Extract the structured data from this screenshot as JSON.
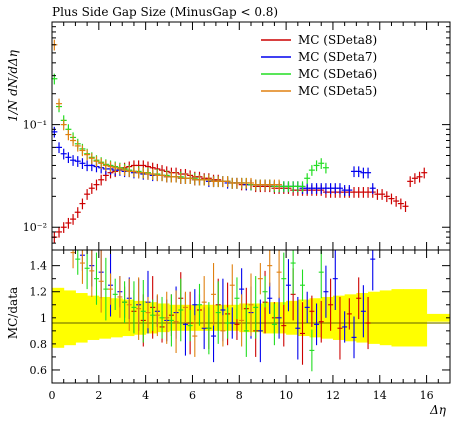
{
  "chart_data": [
    {
      "type": "scatter",
      "title": "Plus Side Gap Size (MinusGap < 0.8)",
      "ylabel": "1/N dN/dΔη",
      "yscale": "log",
      "ylim": [
        0.006,
        1.0
      ],
      "xlim": [
        0,
        17
      ],
      "y_ticks": [
        {
          "v": 0.01,
          "label": "10⁻²"
        },
        {
          "v": 0.1,
          "label": "10⁻¹"
        }
      ],
      "legend": {
        "placement": "top-right",
        "entries": [
          {
            "label": "MC (SDeta8)",
            "color": "#cc0000"
          },
          {
            "label": "MC (SDeta7)",
            "color": "#0000ee"
          },
          {
            "label": "MC (SDeta6)",
            "color": "#22dd22"
          },
          {
            "label": "MC (SDeta5)",
            "color": "#e08010"
          }
        ]
      },
      "series": [
        {
          "name": "MC (SDeta8)",
          "color": "#cc0000",
          "x": [
            0.1,
            0.3,
            0.5,
            0.7,
            0.9,
            1.1,
            1.3,
            1.5,
            1.7,
            1.9,
            2.1,
            2.3,
            2.5,
            2.7,
            2.9,
            3.1,
            3.3,
            3.5,
            3.7,
            3.9,
            4.1,
            4.3,
            4.5,
            4.7,
            4.9,
            5.1,
            5.3,
            5.5,
            5.7,
            5.9,
            6.1,
            6.3,
            6.5,
            6.7,
            6.9,
            7.1,
            7.3,
            7.5,
            7.7,
            7.9,
            8.1,
            8.3,
            8.5,
            8.7,
            8.9,
            9.1,
            9.3,
            9.5,
            9.7,
            9.9,
            10.1,
            10.3,
            10.5,
            10.7,
            10.9,
            11.1,
            11.3,
            11.5,
            11.7,
            11.9,
            12.1,
            12.3,
            12.5,
            12.7,
            12.9,
            13.1,
            13.3,
            13.5,
            13.7,
            13.9,
            14.1,
            14.3,
            14.5,
            14.7,
            14.9,
            15.1,
            15.3,
            15.5,
            15.7,
            15.9
          ],
          "y": [
            0.008,
            0.009,
            0.01,
            0.011,
            0.012,
            0.014,
            0.017,
            0.021,
            0.024,
            0.026,
            0.029,
            0.032,
            0.034,
            0.035,
            0.037,
            0.038,
            0.039,
            0.04,
            0.04,
            0.04,
            0.039,
            0.038,
            0.037,
            0.036,
            0.035,
            0.034,
            0.034,
            0.033,
            0.033,
            0.032,
            0.031,
            0.031,
            0.03,
            0.03,
            0.029,
            0.029,
            0.028,
            0.028,
            0.027,
            0.027,
            0.026,
            0.026,
            0.026,
            0.025,
            0.025,
            0.025,
            0.025,
            0.024,
            0.024,
            0.024,
            0.024,
            0.023,
            0.023,
            0.023,
            0.023,
            0.023,
            0.023,
            0.023,
            0.022,
            0.022,
            0.022,
            0.022,
            0.022,
            0.022,
            0.022,
            0.022,
            0.022,
            0.022,
            0.022,
            0.021,
            0.021,
            0.02,
            0.019,
            0.018,
            0.017,
            0.016,
            0.028,
            0.03,
            0.031,
            0.034
          ]
        },
        {
          "name": "MC (SDeta7)",
          "color": "#0000ee",
          "x": [
            0.1,
            0.3,
            0.5,
            0.7,
            0.9,
            1.1,
            1.3,
            1.5,
            1.7,
            1.9,
            2.1,
            2.3,
            2.5,
            2.7,
            2.9,
            3.1,
            3.3,
            3.5,
            3.7,
            3.9,
            4.1,
            4.3,
            4.5,
            4.7,
            4.9,
            5.1,
            5.3,
            5.5,
            5.7,
            5.9,
            6.1,
            6.3,
            6.5,
            6.7,
            6.9,
            7.1,
            7.3,
            7.5,
            7.7,
            7.9,
            8.1,
            8.3,
            8.5,
            8.7,
            8.9,
            9.1,
            9.3,
            9.5,
            9.7,
            9.9,
            10.1,
            10.3,
            10.5,
            10.7,
            10.9,
            11.1,
            11.3,
            11.5,
            11.7,
            11.9,
            12.1,
            12.3,
            12.5,
            12.7,
            12.9,
            13.1,
            13.3,
            13.5,
            13.7
          ],
          "y": [
            0.085,
            0.06,
            0.052,
            0.048,
            0.045,
            0.044,
            0.042,
            0.04,
            0.04,
            0.039,
            0.038,
            0.037,
            0.037,
            0.036,
            0.036,
            0.035,
            0.035,
            0.034,
            0.034,
            0.033,
            0.033,
            0.032,
            0.032,
            0.032,
            0.031,
            0.031,
            0.031,
            0.03,
            0.03,
            0.03,
            0.029,
            0.029,
            0.029,
            0.028,
            0.028,
            0.028,
            0.028,
            0.027,
            0.027,
            0.027,
            0.027,
            0.026,
            0.026,
            0.026,
            0.026,
            0.026,
            0.026,
            0.025,
            0.025,
            0.025,
            0.025,
            0.025,
            0.025,
            0.024,
            0.024,
            0.024,
            0.024,
            0.024,
            0.024,
            0.024,
            0.024,
            0.024,
            0.023,
            0.023,
            0.035,
            0.035,
            0.034,
            0.034,
            0.024
          ]
        },
        {
          "name": "MC (SDeta6)",
          "color": "#22dd22",
          "x": [
            0.1,
            0.3,
            0.5,
            0.7,
            0.9,
            1.1,
            1.3,
            1.5,
            1.7,
            1.9,
            2.1,
            2.3,
            2.5,
            2.7,
            2.9,
            3.1,
            3.3,
            3.5,
            3.7,
            3.9,
            4.1,
            4.3,
            4.5,
            4.7,
            4.9,
            5.1,
            5.3,
            5.5,
            5.7,
            5.9,
            6.1,
            6.3,
            6.5,
            6.7,
            6.9,
            7.1,
            7.3,
            7.5,
            7.7,
            7.9,
            8.1,
            8.3,
            8.5,
            8.7,
            8.9,
            9.1,
            9.3,
            9.5,
            9.7,
            9.9,
            10.1,
            10.3,
            10.5,
            10.7,
            10.9,
            11.1,
            11.3,
            11.5,
            11.7
          ],
          "y": [
            0.28,
            0.15,
            0.11,
            0.09,
            0.075,
            0.065,
            0.058,
            0.052,
            0.048,
            0.045,
            0.043,
            0.041,
            0.04,
            0.039,
            0.038,
            0.037,
            0.036,
            0.035,
            0.035,
            0.034,
            0.034,
            0.033,
            0.033,
            0.032,
            0.032,
            0.031,
            0.031,
            0.031,
            0.03,
            0.03,
            0.03,
            0.029,
            0.029,
            0.029,
            0.028,
            0.028,
            0.028,
            0.028,
            0.027,
            0.027,
            0.027,
            0.027,
            0.026,
            0.026,
            0.026,
            0.026,
            0.026,
            0.025,
            0.025,
            0.025,
            0.025,
            0.025,
            0.025,
            0.025,
            0.03,
            0.036,
            0.04,
            0.042,
            0.038
          ]
        },
        {
          "name": "MC (SDeta5)",
          "color": "#e08010",
          "x": [
            0.1,
            0.3,
            0.5,
            0.7,
            0.9,
            1.1,
            1.3,
            1.5,
            1.7,
            1.9,
            2.1,
            2.3,
            2.5,
            2.7,
            2.9,
            3.1,
            3.3,
            3.5,
            3.7,
            3.9,
            4.1,
            4.3,
            4.5,
            4.7,
            4.9,
            5.1,
            5.3,
            5.5,
            5.7,
            5.9,
            6.1,
            6.3,
            6.5,
            6.7,
            6.9,
            7.1,
            7.3,
            7.5,
            7.7,
            7.9,
            8.1,
            8.3,
            8.5,
            8.7,
            8.9,
            9.1,
            9.3,
            9.5,
            9.7
          ],
          "y": [
            0.6,
            0.16,
            0.1,
            0.08,
            0.07,
            0.062,
            0.056,
            0.051,
            0.047,
            0.044,
            0.042,
            0.04,
            0.039,
            0.038,
            0.037,
            0.036,
            0.035,
            0.035,
            0.034,
            0.034,
            0.033,
            0.033,
            0.032,
            0.032,
            0.031,
            0.031,
            0.031,
            0.03,
            0.03,
            0.03,
            0.029,
            0.029,
            0.029,
            0.029,
            0.028,
            0.028,
            0.028,
            0.028,
            0.027,
            0.027,
            0.027,
            0.027,
            0.027,
            0.026,
            0.026,
            0.026,
            0.026,
            0.026,
            0.026
          ]
        }
      ]
    },
    {
      "type": "scatter",
      "ylabel": "MC/data",
      "xlabel": "Δη",
      "xlim": [
        0,
        17
      ],
      "ylim": [
        0.5,
        1.52
      ],
      "x_ticks": [
        0,
        2,
        4,
        6,
        8,
        10,
        12,
        14,
        16
      ],
      "y_ticks": [
        0.6,
        0.8,
        1,
        1.2,
        1.4
      ],
      "reference_line": 1,
      "band": {
        "color": "#ffff00",
        "x": [
          0.5,
          1.0,
          1.5,
          2.0,
          2.5,
          3.0,
          3.5,
          4.0,
          4.5,
          5.0,
          5.5,
          6.0,
          6.5,
          7.0,
          7.5,
          8.0,
          8.5,
          9.0,
          9.5,
          10.0,
          10.5,
          11.0,
          11.5,
          12.0,
          12.5,
          13.0,
          13.5,
          14.0,
          14.5,
          15.0,
          15.5,
          16.0
        ],
        "halfwidth": [
          0.23,
          0.21,
          0.19,
          0.17,
          0.16,
          0.15,
          0.14,
          0.13,
          0.12,
          0.11,
          0.1,
          0.1,
          0.1,
          0.1,
          0.1,
          0.1,
          0.11,
          0.11,
          0.12,
          0.12,
          0.13,
          0.14,
          0.15,
          0.16,
          0.17,
          0.18,
          0.19,
          0.2,
          0.21,
          0.22,
          0.22,
          0.22
        ]
      },
      "series": [
        {
          "name": "MC (SDeta8)",
          "color": "#cc0000",
          "x": [
            3.1,
            3.5,
            3.9,
            4.3,
            4.7,
            5.1,
            5.5,
            5.9,
            6.3,
            6.7,
            7.1,
            7.5,
            7.9,
            8.3,
            8.7,
            9.1,
            9.5,
            9.9,
            10.3,
            10.7,
            11.1,
            11.5,
            11.9,
            12.3,
            12.7,
            13.1,
            13.5
          ],
          "y": [
            1.12,
            1.05,
            0.98,
            1.08,
            0.93,
            1.02,
            1.15,
            0.96,
            1.06,
            0.92,
            1.1,
            1.03,
            0.95,
            1.07,
            0.9,
            1.12,
            1.0,
            0.94,
            1.18,
            0.88,
            1.05,
            0.97,
            1.1,
            0.92,
            1.03,
            1.15,
            0.96
          ]
        },
        {
          "name": "MC (SDeta7)",
          "color": "#0000ee",
          "x": [
            1.3,
            1.7,
            2.1,
            2.5,
            2.9,
            3.3,
            3.7,
            4.1,
            4.5,
            4.9,
            5.3,
            5.7,
            6.1,
            6.5,
            6.9,
            7.3,
            7.7,
            8.1,
            8.5,
            8.9,
            9.3,
            9.7,
            10.1,
            10.5,
            10.9,
            11.3,
            11.7,
            12.1,
            12.5,
            12.9,
            13.3,
            13.7
          ],
          "y": [
            1.48,
            1.4,
            1.35,
            1.25,
            1.2,
            1.15,
            1.1,
            1.12,
            1.05,
            0.98,
            1.04,
            0.95,
            1.1,
            0.92,
            0.86,
            1.06,
            0.96,
            1.22,
            1.04,
            0.9,
            1.15,
            1.0,
            1.25,
            0.92,
            1.08,
            0.95,
            1.2,
            1.3,
            0.93,
            0.85,
            1.05,
            1.45
          ]
        },
        {
          "name": "MC (SDeta6)",
          "color": "#22dd22",
          "x": [
            1.1,
            1.5,
            1.9,
            2.3,
            2.7,
            3.1,
            3.5,
            3.9,
            4.3,
            4.7,
            5.1,
            5.5,
            5.9,
            6.3,
            6.7,
            7.1,
            7.5,
            7.9,
            8.3,
            8.7,
            9.1,
            9.5,
            9.9,
            10.3,
            10.7,
            11.1,
            11.5
          ],
          "y": [
            1.45,
            1.38,
            1.3,
            1.22,
            1.18,
            1.12,
            1.08,
            1.05,
            1.02,
            1.0,
            0.98,
            1.06,
            0.94,
            1.1,
            0.92,
            1.04,
            0.96,
            1.15,
            0.9,
            1.08,
            1.2,
            0.95,
            1.3,
            1.42,
            1.25,
            0.75,
            1.35
          ]
        },
        {
          "name": "MC (SDeta5)",
          "color": "#e08010",
          "x": [
            0.9,
            1.3,
            1.7,
            2.1,
            2.5,
            2.9,
            3.3,
            3.7,
            4.1,
            4.5,
            4.9,
            5.3,
            5.7,
            6.1,
            6.5,
            6.9,
            7.3,
            7.7,
            8.1,
            8.5,
            8.9,
            9.3,
            9.7
          ],
          "y": [
            1.5,
            1.42,
            1.36,
            1.28,
            1.22,
            1.16,
            1.1,
            1.07,
            1.04,
            1.02,
            1.0,
            0.97,
            1.08,
            0.86,
            1.12,
            1.18,
            0.9,
            1.25,
            0.98,
            1.1,
            1.3,
            1.4,
            1.35
          ]
        }
      ]
    }
  ]
}
